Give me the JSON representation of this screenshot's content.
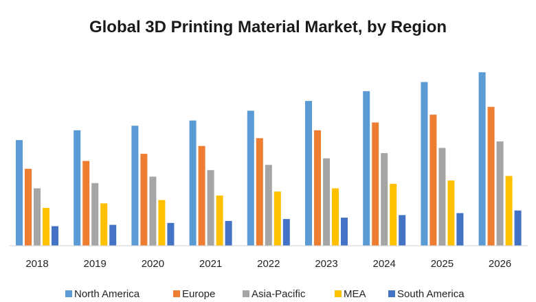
{
  "chart_data": {
    "type": "bar",
    "title": "Global 3D Printing Material Market, by Region",
    "xlabel": "",
    "ylabel": "",
    "categories": [
      "2018",
      "2019",
      "2020",
      "2021",
      "2022",
      "2023",
      "2024",
      "2025",
      "2026"
    ],
    "series": [
      {
        "name": "North America",
        "color": "#5b9bd5",
        "values": [
          162,
          177,
          184,
          192,
          207,
          222,
          237,
          251,
          266
        ]
      },
      {
        "name": "Europe",
        "color": "#ed7d31",
        "values": [
          118,
          130,
          141,
          153,
          165,
          177,
          189,
          201,
          213
        ]
      },
      {
        "name": "Asia-Pacific",
        "color": "#a5a5a5",
        "values": [
          88,
          96,
          106,
          116,
          124,
          134,
          142,
          150,
          160
        ]
      },
      {
        "name": "MEA",
        "color": "#ffc000",
        "values": [
          58,
          65,
          70,
          77,
          83,
          88,
          95,
          100,
          107
        ]
      },
      {
        "name": "South America",
        "color": "#4472c4",
        "values": [
          30,
          32,
          35,
          38,
          41,
          43,
          47,
          50,
          54
        ]
      }
    ],
    "ylim": [
      0,
      280
    ],
    "grid": false,
    "legend_position": "bottom"
  }
}
